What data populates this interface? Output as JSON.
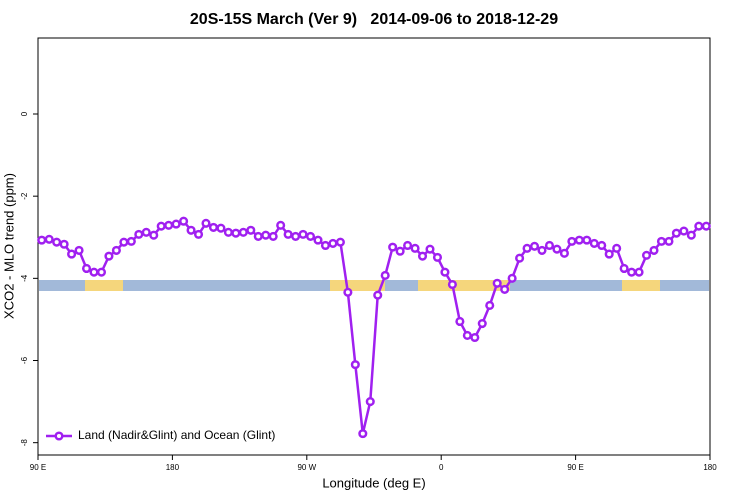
{
  "chart_data": {
    "type": "line",
    "title": "20S-15S March (Ver 9)   2014-09-06 to 2018-12-29",
    "x_label": "Longitude (deg E)",
    "y_label": "XCO2 - MLO trend (ppm)",
    "xlim": [
      90,
      540
    ],
    "ylim": [
      -8.3,
      1.85
    ],
    "xticks": [
      {
        "value": 90,
        "label": "90 E"
      },
      180,
      {
        "value": 270,
        "label": "90 W"
      },
      {
        "value": 360,
        "label": "0"
      },
      {
        "value": 450,
        "label": "90 E"
      },
      {
        "value": 540,
        "label": "180"
      }
    ],
    "yticks": [
      0,
      -2,
      -4,
      -6,
      -8
    ],
    "legend": "bottom-left",
    "x": [
      92.5,
      97.5,
      102.5,
      107.5,
      112.5,
      117.5,
      122.5,
      127.5,
      132.5,
      137.5,
      142.5,
      147.5,
      152.5,
      157.5,
      162.5,
      167.5,
      172.5,
      177.5,
      182.5,
      187.5,
      192.5,
      197.5,
      202.5,
      207.5,
      212.5,
      217.5,
      222.5,
      227.5,
      232.5,
      237.5,
      242.5,
      247.5,
      252.5,
      257.5,
      262.5,
      267.5,
      272.5,
      277.5,
      282.5,
      287.5,
      292.5,
      297.5,
      302.5,
      307.5,
      312.5,
      317.5,
      322.5,
      327.5,
      332.5,
      337.5,
      342.5,
      347.5,
      352.5,
      357.5,
      362.5,
      367.5,
      372.5,
      377.5,
      382.5,
      387.5,
      392.5,
      397.5,
      402.5,
      407.5,
      412.5,
      417.5,
      422.5,
      427.5,
      432.5,
      437.5,
      442.5,
      447.5,
      452.5,
      457.5,
      462.5,
      467.5,
      472.5,
      477.5,
      482.5,
      487.5,
      492.5,
      497.5,
      502.5,
      507.5,
      512.5,
      517.5,
      522.5,
      527.5,
      532.5,
      537.5
    ],
    "series": [
      {
        "name": "Land (Nadir&Glint) and Ocean (Glint)",
        "color": "#a020f0",
        "values": [
          -3.07,
          -3.05,
          -3.12,
          -3.17,
          -3.41,
          -3.32,
          -3.76,
          -3.85,
          -3.85,
          -3.46,
          -3.32,
          -3.12,
          -3.1,
          -2.93,
          -2.88,
          -2.95,
          -2.73,
          -2.71,
          -2.68,
          -2.61,
          -2.83,
          -2.93,
          -2.66,
          -2.76,
          -2.78,
          -2.88,
          -2.9,
          -2.88,
          -2.83,
          -2.98,
          -2.95,
          -2.98,
          -2.71,
          -2.93,
          -2.98,
          -2.93,
          -2.98,
          -3.07,
          -3.2,
          -3.15,
          -3.12,
          -4.34,
          -6.1,
          -7.78,
          -7.0,
          -4.41,
          -3.93,
          -3.24,
          -3.34,
          -3.2,
          -3.27,
          -3.46,
          -3.29,
          -3.49,
          -3.85,
          -4.15,
          -5.05,
          -5.39,
          -5.44,
          -5.1,
          -4.66,
          -4.12,
          -4.27,
          -4.0,
          -3.51,
          -3.27,
          -3.22,
          -3.32,
          -3.2,
          -3.29,
          -3.39,
          -3.1,
          -3.07,
          -3.07,
          -3.15,
          -3.2,
          -3.41,
          -3.27,
          -3.76,
          -3.85,
          -3.85,
          -3.44,
          -3.32,
          -3.1,
          -3.1,
          -2.9,
          -2.85,
          -2.95,
          -2.73,
          -2.73
        ]
      }
    ]
  }
}
